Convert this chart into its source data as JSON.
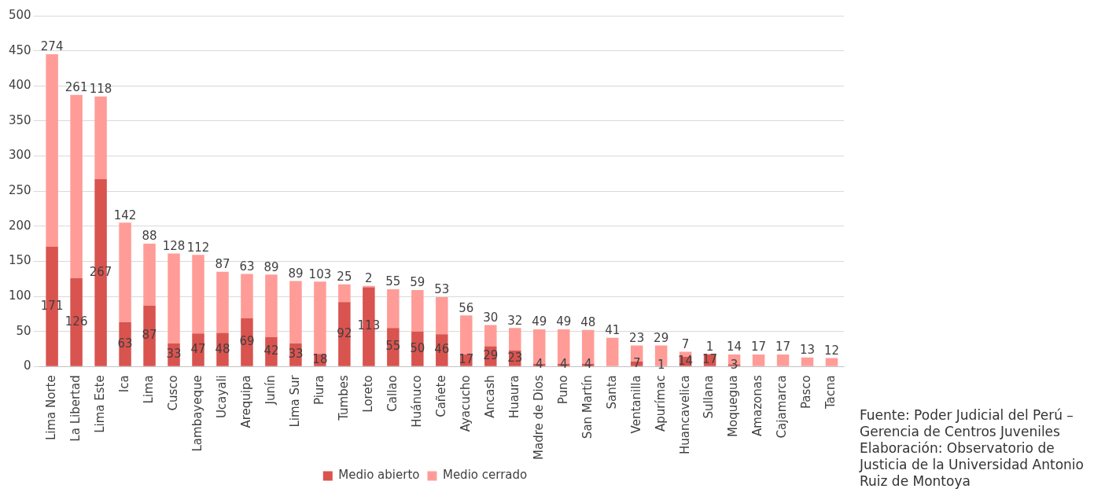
{
  "chart_data": {
    "type": "bar",
    "stacked": true,
    "categories": [
      "Lima Norte",
      "La Libertad",
      "Lima Este",
      "Ica",
      "Lima",
      "Cusco",
      "Lambayeque",
      "Ucayali",
      "Arequipa",
      "Junín",
      "Lima Sur",
      "Piura",
      "Tumbes",
      "Loreto",
      "Callao",
      "Huánuco",
      "Cañete",
      "Ayacucho",
      "Ancash",
      "Huaura",
      "Madre de Dios",
      "Puno",
      "San Martín",
      "Santa",
      "Ventanilla",
      "Apurímac",
      "Huancavelica",
      "Sullana",
      "Moquegua",
      "Amazonas",
      "Cajamarca",
      "Pasco",
      "Tacna"
    ],
    "series": [
      {
        "name": "Medio abierto",
        "color": "#d9534f",
        "values": [
          171,
          126,
          267,
          63,
          87,
          33,
          47,
          48,
          69,
          42,
          33,
          18,
          92,
          113,
          55,
          50,
          46,
          17,
          29,
          23,
          4,
          4,
          4,
          null,
          7,
          1,
          14,
          17,
          3,
          null,
          null,
          null,
          null
        ]
      },
      {
        "name": "Medio cerrado",
        "color": "#ff9c97",
        "values": [
          274,
          261,
          118,
          142,
          88,
          128,
          112,
          87,
          63,
          89,
          89,
          103,
          25,
          2,
          55,
          59,
          53,
          56,
          30,
          32,
          49,
          49,
          48,
          41,
          23,
          29,
          7,
          1,
          14,
          17,
          17,
          13,
          12
        ]
      }
    ],
    "ylim": [
      0,
      500
    ],
    "yticks": [
      0,
      50,
      100,
      150,
      200,
      250,
      300,
      350,
      400,
      450,
      500
    ],
    "grid": "y",
    "legend": "bottom",
    "data_labels": true,
    "annotations": [
      "Fuente: Poder Judicial del Perú – Gerencia de Centros Juveniles",
      "Elaboración: Observatorio de Justicia de la Universidad Antonio Ruiz de Montoya"
    ]
  }
}
